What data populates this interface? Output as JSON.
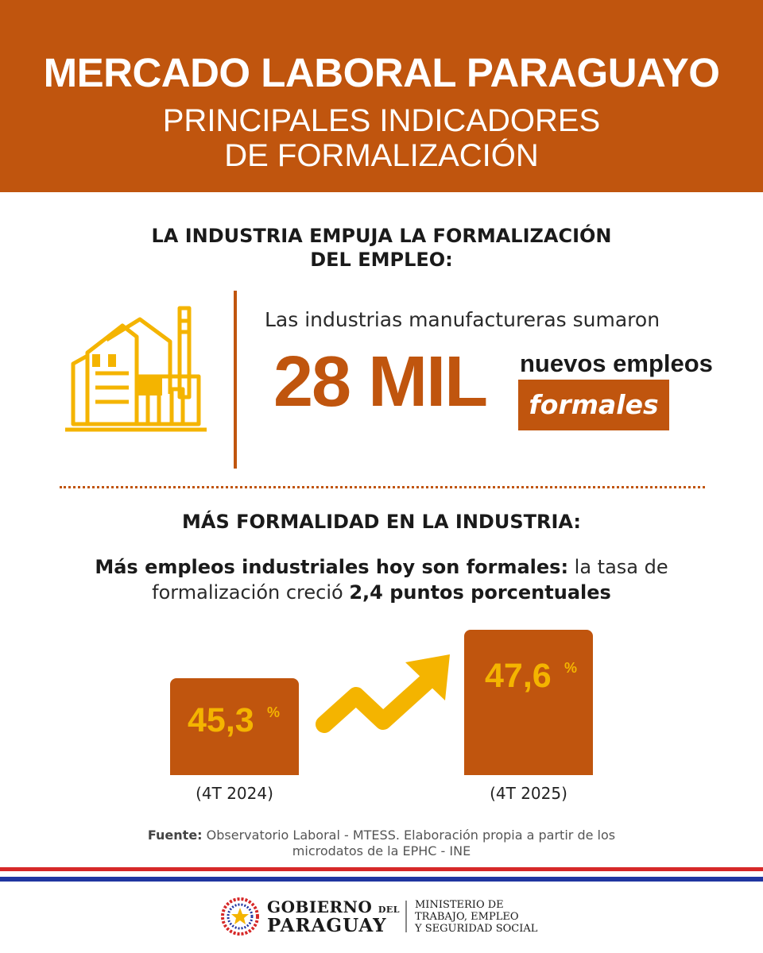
{
  "header": {
    "title": "MERCADO LABORAL PARAGUAYO",
    "subtitle_line1": "PRINCIPALES INDICADORES",
    "subtitle_line2": "DE FORMALIZACIÓN",
    "color": "#c0550e"
  },
  "section1": {
    "title_line1": "LA INDUSTRIA EMPUJA LA FORMALIZACIÓN",
    "title_line2": "DEL EMPLEO:",
    "icon": "factory-icon",
    "lead": "Las industrias manufactureras sumaron",
    "big_number": "28 MIL",
    "suffix": "nuevos empleos",
    "highlight": "formales"
  },
  "section2": {
    "title": "MÁS FORMALIDAD EN LA INDUSTRIA:",
    "desc_bold": "Más empleos industriales hoy son formales:",
    "desc_normal1": " la tasa de",
    "desc_normal2": "formalización creció ",
    "desc_bold2": "2,4 puntos porcentuales"
  },
  "chart_data": {
    "type": "bar",
    "categories": [
      "(4T 2024)",
      "(4T 2025)"
    ],
    "values": [
      45.3,
      47.6
    ],
    "value_labels": [
      "45,3",
      "47,6"
    ],
    "unit": "%",
    "ylim": [
      0,
      50
    ],
    "trend_icon": "trend-up-arrow-icon",
    "colors": {
      "bar": "#c0550e",
      "label": "#f4b400"
    }
  },
  "source": {
    "label": "Fuente:",
    "text_line1": " Observatorio Laboral - MTESS. Elaboración propia a partir de los",
    "text_line2": "microdatos de la EPHC - INE"
  },
  "footer": {
    "gov_line1": "GOBIERNO",
    "gov_del": "DEL",
    "gov_line2": "PARAGUAY",
    "ministry_line1": "MINISTERIO DE",
    "ministry_line2": "TRABAJO, EMPLEO",
    "ministry_line3": "Y SEGURIDAD SOCIAL",
    "flag_colors": {
      "red": "#d62828",
      "blue": "#2035a0"
    }
  }
}
